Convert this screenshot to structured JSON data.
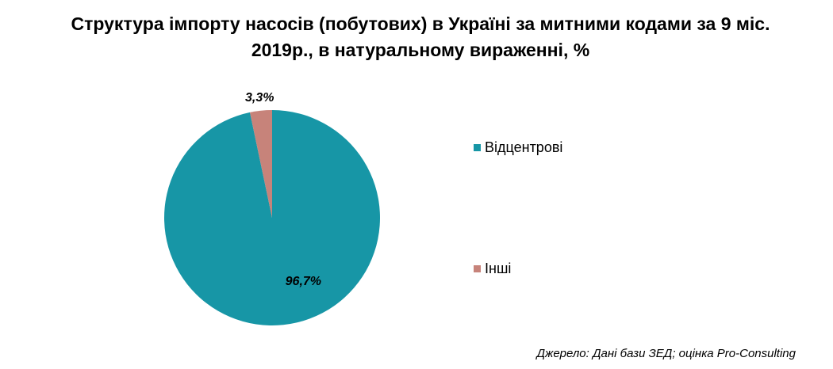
{
  "chart_data": {
    "type": "pie",
    "title": "Структура імпорту насосів (побутових) в Україні за митними кодами за 9 міс. 2019р., в натуральному вираженні, %",
    "categories": [
      "Відцентрові",
      "Інші"
    ],
    "values": [
      96.7,
      3.3
    ],
    "value_labels": [
      "96,7%",
      "3,3%"
    ],
    "colors": [
      "#1796a6",
      "#c7837a"
    ],
    "source": "Джерело: Дані бази ЗЕД; оцінка Pro-Consulting"
  }
}
